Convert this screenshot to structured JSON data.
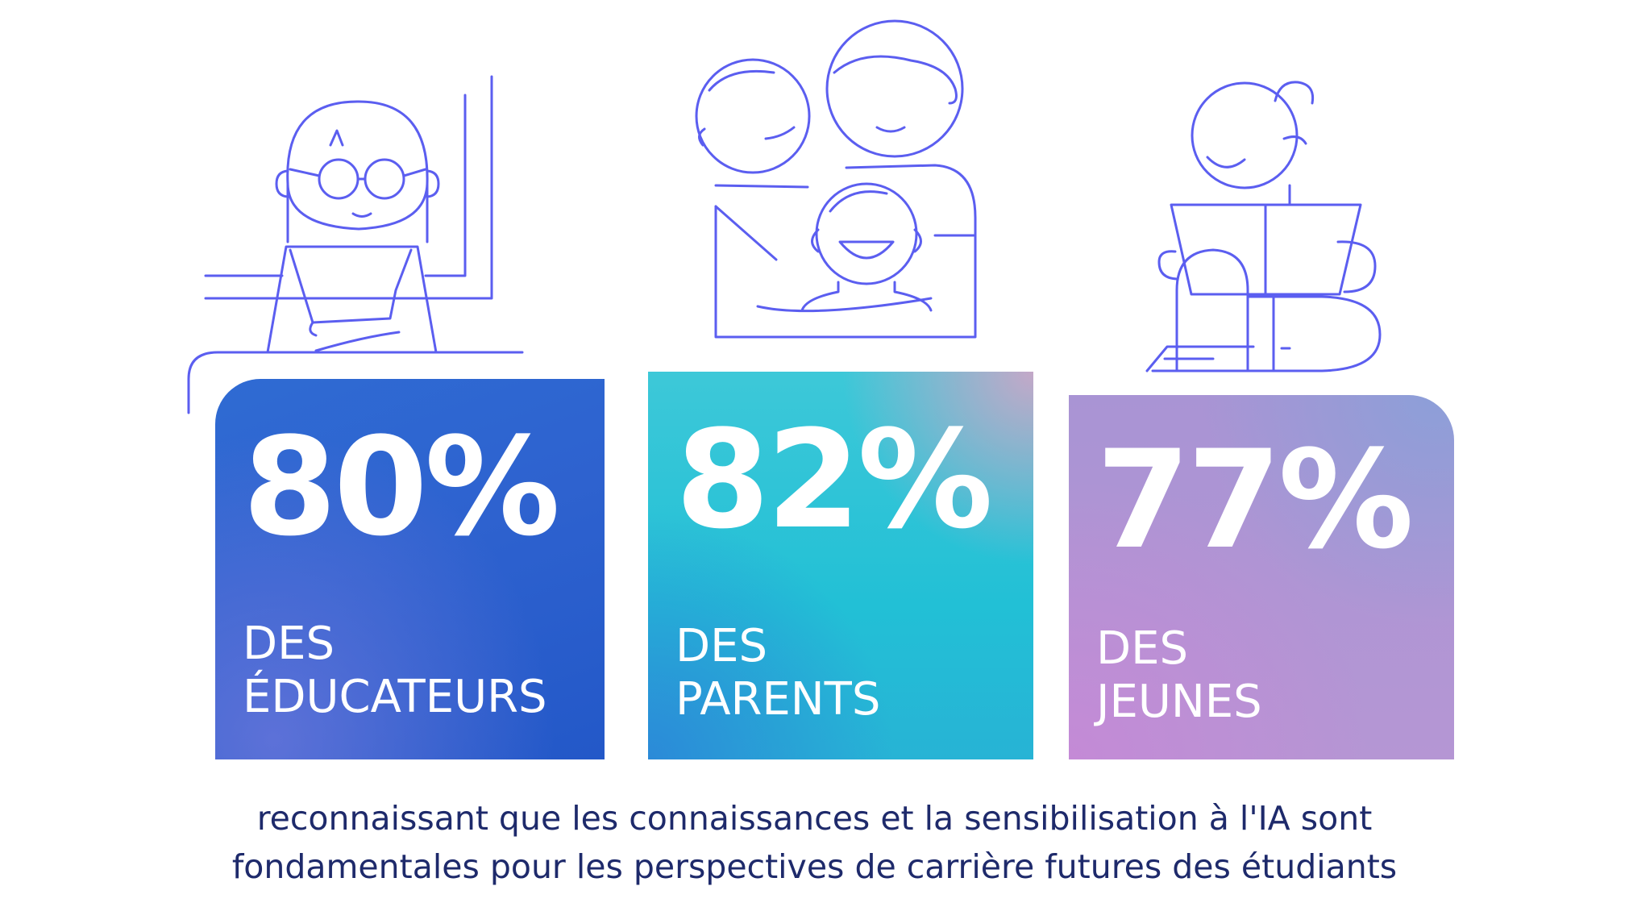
{
  "stats": [
    {
      "percent": "80%",
      "label_line1": "DES",
      "label_line2": "ÉDUCATEURS",
      "color_from": "#2f6bd3",
      "color_to": "#2358c8"
    },
    {
      "percent": "82%",
      "label_line1": "DES",
      "label_line2": "PARENTS",
      "color_from": "#3dc8d8",
      "color_to": "#27b3d5"
    },
    {
      "percent": "77%",
      "label_line1": "DES",
      "label_line2": "JEUNES",
      "color_from": "#8d9fd8",
      "color_to": "#c48ad6"
    }
  ],
  "caption": {
    "line1": "reconnaissant que les connaissances et la sensibilisation à l'IA sont",
    "line2": "fondamentales pour les perspectives de carrière futures des étudiants"
  },
  "colors": {
    "illustration_stroke": "#5b5ef0",
    "caption_text": "#1e2a6b",
    "background": "#ffffff"
  },
  "icons": [
    "educator-illustration",
    "parents-child-illustration",
    "student-illustration"
  ]
}
